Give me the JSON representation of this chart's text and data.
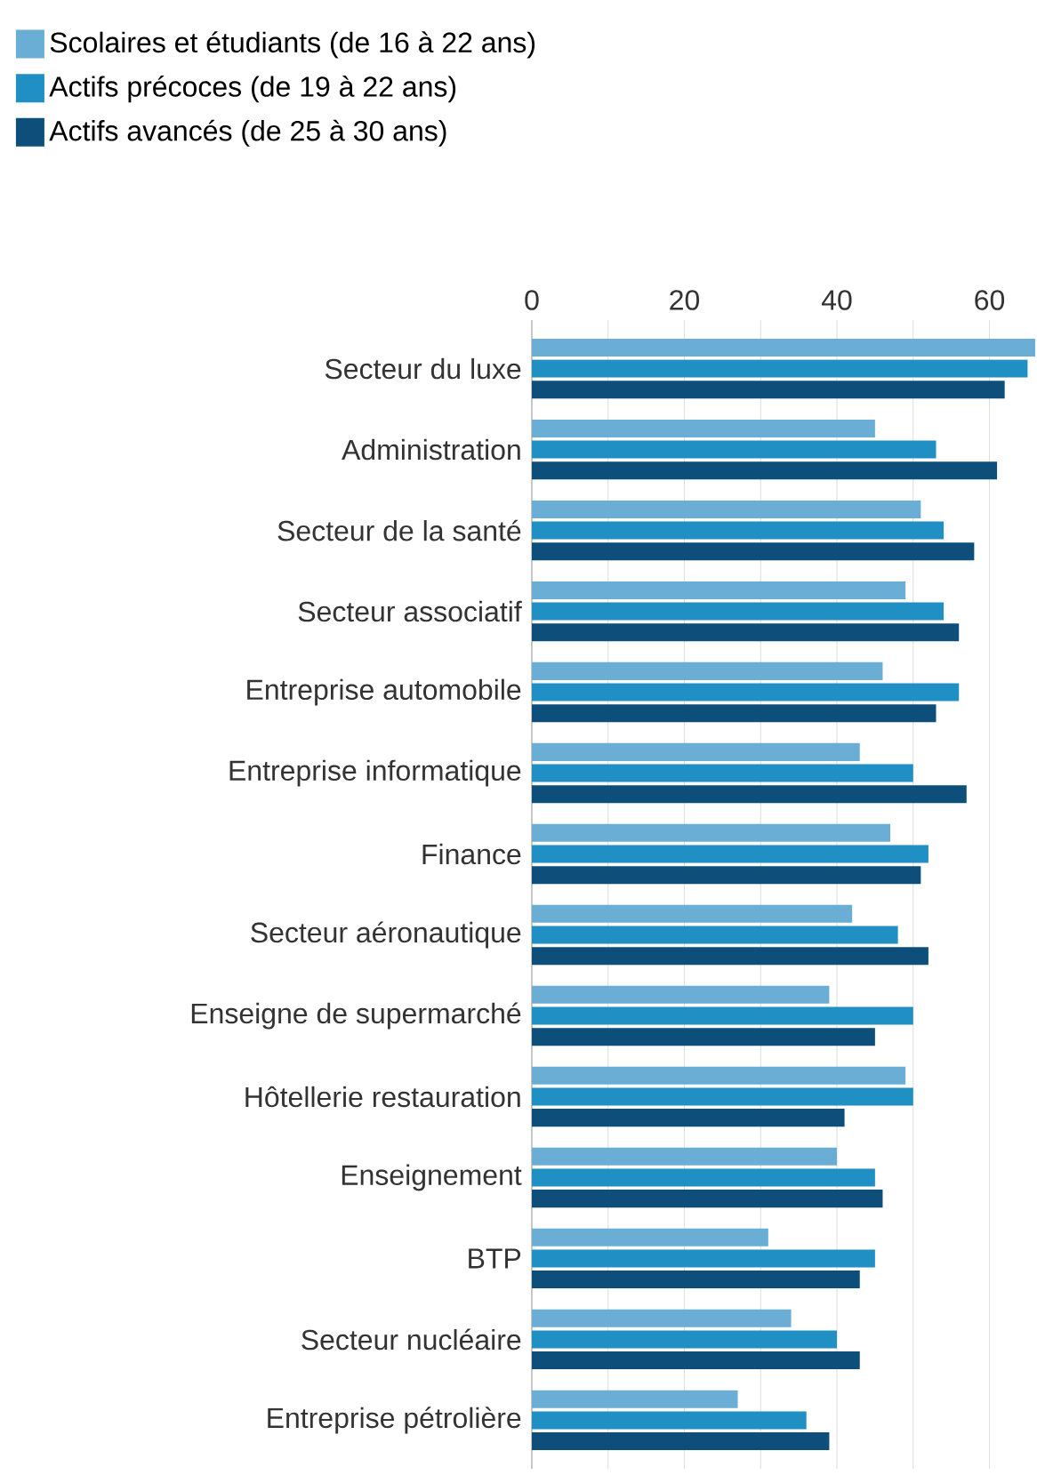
{
  "chart_data": {
    "type": "bar",
    "orientation": "horizontal",
    "categories": [
      "Secteur du luxe",
      "Administration",
      "Secteur de la santé",
      "Secteur associatif",
      "Entreprise automobile",
      "Entreprise informatique",
      "Finance",
      "Secteur aéronautique",
      "Enseigne de supermarché",
      "Hôtellerie restauration",
      "Enseignement",
      "BTP",
      "Secteur nucléaire",
      "Entreprise pétrolière"
    ],
    "series": [
      {
        "name": "Scolaires et étudiants (de 16 à 22 ans)",
        "color": "#6aaed6",
        "values": [
          66,
          45,
          51,
          49,
          46,
          43,
          47,
          42,
          39,
          49,
          40,
          31,
          34,
          27
        ]
      },
      {
        "name": "Actifs précoces (de 19 à 22 ans)",
        "color": "#1f8fc4",
        "values": [
          65,
          53,
          54,
          54,
          56,
          50,
          52,
          48,
          50,
          50,
          45,
          45,
          40,
          36
        ]
      },
      {
        "name": "Actifs avancés (de 25 à 30 ans)",
        "color": "#0d4f7a",
        "values": [
          62,
          61,
          58,
          56,
          53,
          57,
          51,
          52,
          45,
          41,
          46,
          43,
          43,
          39
        ]
      }
    ],
    "xlim": [
      0,
      66
    ],
    "xticks": [
      0,
      {
        "value": 10,
        "label": null
      },
      20,
      {
        "value": 30,
        "label": null
      },
      40,
      {
        "value": 50,
        "label": null
      },
      60
    ],
    "grid": "x",
    "legend": "top left"
  }
}
